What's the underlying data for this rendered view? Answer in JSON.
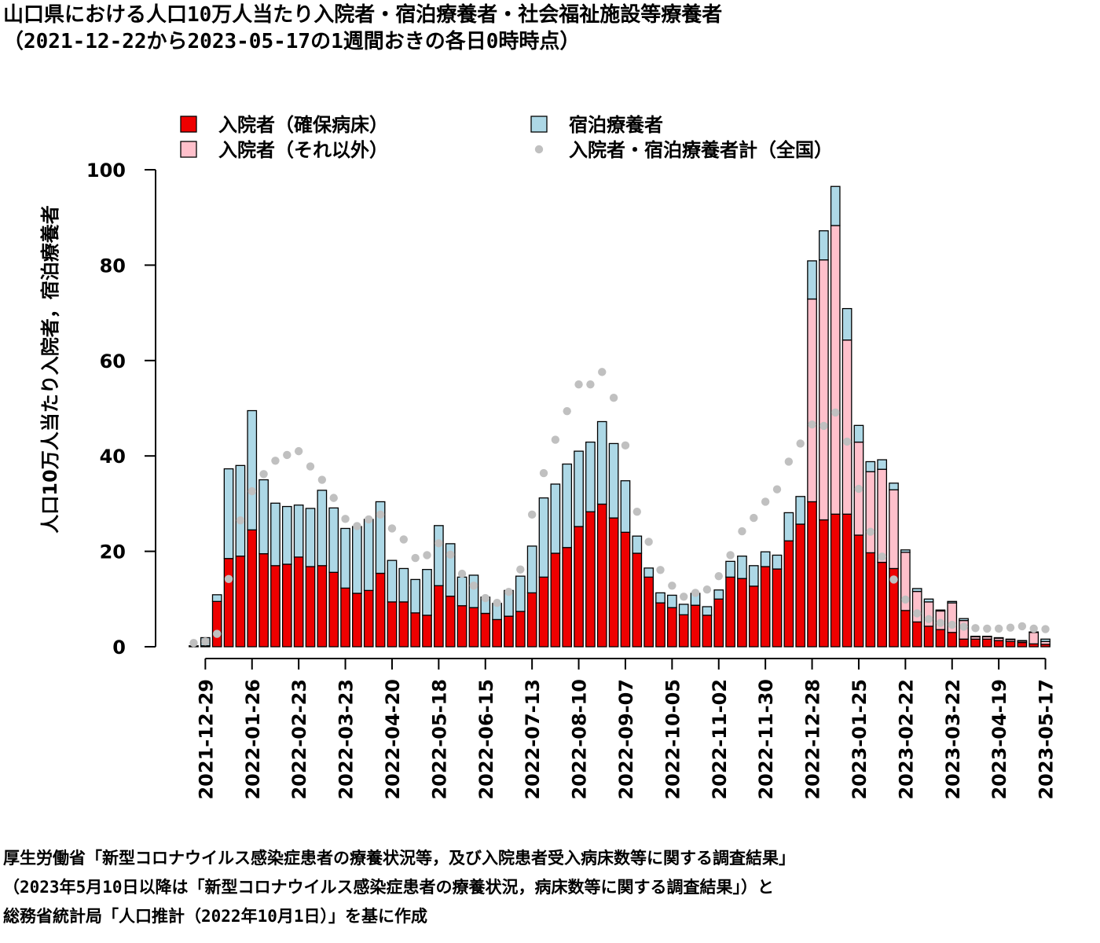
{
  "title_line1": "山口県における人口10万人当たり入院者・宿泊療養者・社会福祉施設等療養者",
  "title_line2": "（2021-12-22から2023-05-17の1週間おきの各日0時時点）",
  "footer": {
    "line1": "厚生労働省「新型コロナウイルス感染症患者の療養状況等，及び入院患者受入病床数等に関する調査結果」",
    "line2": "（2023年5月10日以降は「新型コロナウイルス感染症患者の療養状況，病床数等に関する調査結果」）と",
    "line3": "総務省統計局「人口推計（2022年10月1日）」を基に作成"
  },
  "colors": {
    "hosp_secured": "#ee0000",
    "hosp_other": "#ffc0cb",
    "hotel": "#add8e6",
    "national": "#c0c0c0"
  },
  "chart_data": {
    "type": "bar",
    "stacked": true,
    "ylabel": "人口10万人当たり入院者，宿泊療養者",
    "ylim": [
      0,
      100
    ],
    "yticks": [
      0,
      20,
      40,
      60,
      80,
      100
    ],
    "legend": [
      {
        "key": "hosp_secured",
        "label": "入院者（確保病床）",
        "kind": "box"
      },
      {
        "key": "hosp_other",
        "label": "入院者（それ以外）",
        "kind": "box"
      },
      {
        "key": "hotel",
        "label": "宿泊療養者",
        "kind": "box"
      },
      {
        "key": "national",
        "label": "入院者・宿泊療養者計（全国）",
        "kind": "point"
      }
    ],
    "xtick_labels": [
      "2021-12-29",
      "2022-01-26",
      "2022-02-23",
      "2022-03-23",
      "2022-04-20",
      "2022-05-18",
      "2022-06-15",
      "2022-07-13",
      "2022-08-10",
      "2022-09-07",
      "2022-10-05",
      "2022-11-02",
      "2022-11-30",
      "2022-12-28",
      "2023-01-25",
      "2023-02-22",
      "2023-03-22",
      "2023-04-19",
      "2023-05-17"
    ],
    "xtick_every": 4,
    "xtick_offset": 1,
    "start_date": "2021-12-22",
    "hosp_secured": [
      0.2,
      0.2,
      9.5,
      18.5,
      19,
      24.5,
      19.5,
      17,
      17.3,
      18.8,
      16.8,
      17,
      15.6,
      12.3,
      11.2,
      11.8,
      15.4,
      9.4,
      9.4,
      7.1,
      6.6,
      12.8,
      10.6,
      8.6,
      8.2,
      7,
      5.7,
      6.4,
      7.4,
      11.3,
      14.6,
      19.6,
      20.8,
      25.2,
      28.3,
      29.9,
      27,
      24,
      19.6,
      14.6,
      9.2,
      8.2,
      6.7,
      8.7,
      6.6,
      10,
      14.6,
      14.3,
      12.7,
      16.8,
      16.3,
      22.2,
      25.7,
      30.4,
      26.6,
      27.8,
      27.8,
      23.4,
      19.7,
      17.7,
      16.4,
      7.6,
      5.2,
      4.3,
      3.6,
      3,
      1.6,
      1.6,
      1.6,
      1.3,
      1.1,
      0.9,
      0.6,
      0.5
    ],
    "hosp_other": [
      0,
      0,
      0,
      0,
      0,
      0,
      0,
      0,
      0,
      0,
      0,
      0,
      0,
      0,
      0,
      0,
      0,
      0,
      0,
      0,
      0,
      0,
      0,
      0,
      0,
      0,
      0,
      0,
      0,
      0,
      0,
      0,
      0,
      0,
      0,
      0,
      0,
      0,
      0,
      0,
      0,
      0,
      0,
      0,
      0,
      0,
      0,
      0,
      0,
      0,
      0,
      0,
      0,
      42.5,
      54.5,
      60.5,
      36.5,
      19.5,
      17,
      19.5,
      16.5,
      12.2,
      6.4,
      5.1,
      3.9,
      6.2,
      3.9,
      0.5,
      0.5,
      0.5,
      0.4,
      0.3,
      2.4,
      0.6
    ],
    "hotel": [
      0,
      1.7,
      1.4,
      18.8,
      19,
      25,
      15.5,
      13.1,
      12.1,
      10.9,
      12.2,
      15.8,
      13.5,
      12.5,
      14,
      14.9,
      15,
      8.7,
      7,
      7,
      9.6,
      12.6,
      11,
      6,
      6.8,
      3.4,
      3.4,
      5.4,
      7.4,
      9.8,
      16.6,
      14.5,
      17.5,
      15.8,
      14.6,
      17.3,
      15.6,
      10.8,
      3.6,
      1.9,
      2.1,
      2.6,
      2.2,
      2.5,
      1.8,
      1.9,
      3.3,
      4.7,
      4.3,
      3.1,
      2.9,
      5.9,
      5.8,
      8,
      6.1,
      8.2,
      6.6,
      3.5,
      2.1,
      2,
      1.4,
      0.5,
      0.6,
      0.6,
      0.2,
      0.3,
      0.4,
      0.1,
      0.1,
      0.1,
      0.1,
      0.1,
      0.1,
      0.5
    ],
    "national": [
      0.8,
      1.1,
      2.7,
      14.2,
      26.5,
      32.6,
      36.2,
      39,
      40.2,
      41,
      37.8,
      35,
      31.2,
      26.8,
      25.3,
      26.7,
      27.7,
      24.8,
      22.5,
      18.6,
      19.2,
      21.7,
      19.3,
      15.3,
      12.8,
      10.2,
      9.2,
      11.5,
      16.2,
      27.7,
      36.4,
      43.4,
      49.4,
      55,
      55,
      57.6,
      52.2,
      42.2,
      28.3,
      22,
      16.1,
      12.8,
      10.5,
      11.3,
      12,
      14.8,
      19.2,
      24.2,
      27,
      30.4,
      33,
      38.8,
      42.6,
      46.6,
      46.3,
      49.1,
      43,
      33.1,
      24.1,
      18.9,
      14.1,
      9.9,
      7,
      5.8,
      5,
      4.6,
      4.2,
      3.9,
      3.8,
      3.8,
      4,
      4.3,
      3.8,
      3.7
    ]
  }
}
